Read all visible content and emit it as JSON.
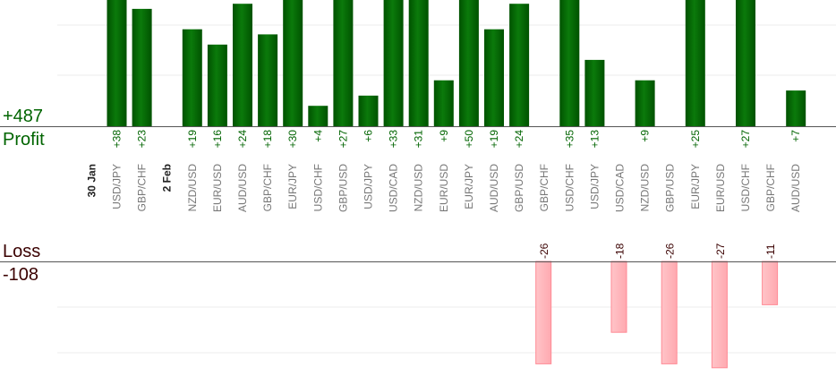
{
  "summary": {
    "profit_total": "+487",
    "profit_label": "Profit",
    "loss_label": "Loss",
    "loss_total": "-108"
  },
  "colors": {
    "profit": "#006400",
    "profit_text": "#006400",
    "loss_fill": "#ffb3b8",
    "loss_stroke": "#ff8a95",
    "loss_text": "#3a0000",
    "category_text": "#777777",
    "date_text": "#222222",
    "grid": "#eeeeee",
    "axis": "#555555"
  },
  "chart_data": {
    "type": "bar",
    "title": "",
    "xlabel": "",
    "ylabel": "",
    "ylim_profit": [
      0,
      50
    ],
    "ylim_loss": [
      -26,
      0
    ],
    "grid": true,
    "legend": "none",
    "bars": [
      {
        "date": "30 Jan",
        "category": "USD/JPY",
        "label": "+38",
        "value": 38
      },
      {
        "category": "GBP/CHF",
        "label": "+23",
        "value": 23
      },
      {
        "date": "2 Feb",
        "category": "NZD/USD",
        "label": "+19",
        "value": 19
      },
      {
        "category": "EUR/USD",
        "label": "+16",
        "value": 16
      },
      {
        "category": "AUD/USD",
        "label": "+24",
        "value": 24
      },
      {
        "category": "GBP/CHF",
        "label": "+18",
        "value": 18
      },
      {
        "category": "EUR/JPY",
        "label": "+30",
        "value": 30
      },
      {
        "category": "USD/CHF",
        "label": "+4",
        "value": 4
      },
      {
        "category": "GBP/USD",
        "label": "+27",
        "value": 27
      },
      {
        "category": "USD/JPY",
        "label": "+6",
        "value": 6
      },
      {
        "category": "USD/CAD",
        "label": "+33",
        "value": 33
      },
      {
        "category": "NZD/USD",
        "label": "+31",
        "value": 31
      },
      {
        "category": "EUR/USD",
        "label": "+9",
        "value": 9
      },
      {
        "category": "EUR/JPY",
        "label": "+50",
        "value": 50
      },
      {
        "category": "AUD/USD",
        "label": "+19",
        "value": 19
      },
      {
        "category": "GBP/USD",
        "label": "+24",
        "value": 24
      },
      {
        "category": "GBP/CHF",
        "label": "-26",
        "value": -26
      },
      {
        "category": "USD/CHF",
        "label": "+35",
        "value": 35
      },
      {
        "category": "USD/JPY",
        "label": "+13",
        "value": 13
      },
      {
        "category": "USD/CAD",
        "label": "-18",
        "value": -18
      },
      {
        "category": "NZD/USD",
        "label": "+9",
        "value": 9
      },
      {
        "category": "GBP/USD",
        "label": "-26",
        "value": -26
      },
      {
        "category": "EUR/JPY",
        "label": "+25",
        "value": 25
      },
      {
        "category": "EUR/USD",
        "label": "-27",
        "value": -27
      },
      {
        "category": "USD/CHF",
        "label": "+27",
        "value": 27
      },
      {
        "category": "GBP/CHF",
        "label": "-11",
        "value": -11
      },
      {
        "category": "AUD/USD",
        "label": "+7",
        "value": 7
      }
    ]
  }
}
